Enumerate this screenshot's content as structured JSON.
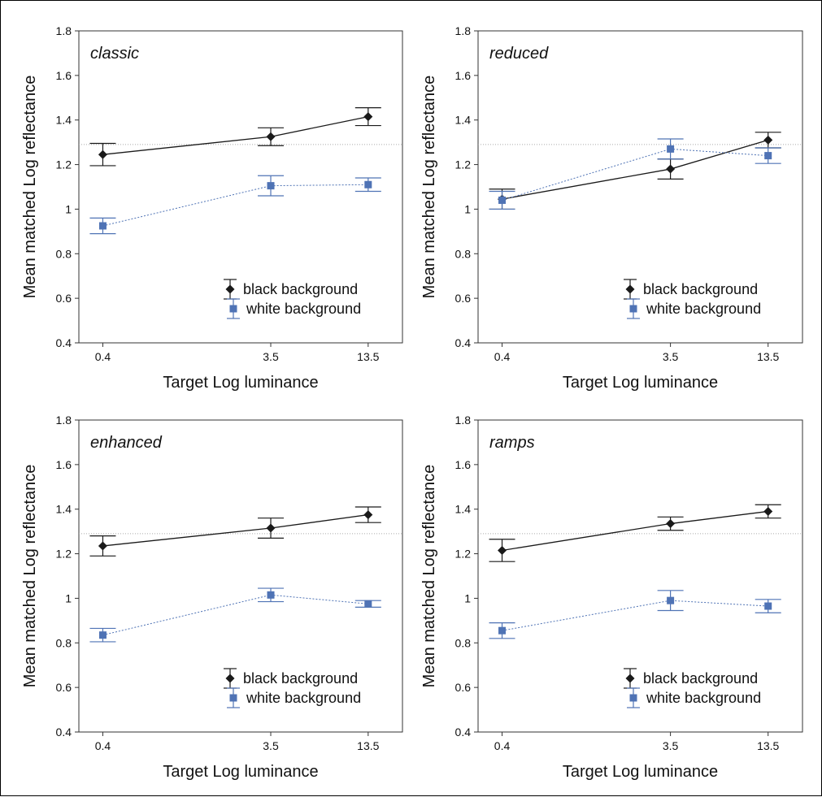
{
  "chart_data": [
    {
      "type": "line",
      "title": "classic",
      "xlabel": "Target Log luminance",
      "ylabel": "Mean matched Log reflectance",
      "x": [
        0.4,
        3.5,
        13.5
      ],
      "x_tick_labels": [
        "0.4",
        "3.5",
        "13.5"
      ],
      "ylim": [
        0.4,
        1.8
      ],
      "y_ticks": [
        "0.4",
        "0.6",
        "0.8",
        "1",
        "1.2",
        "1.4",
        "1.6",
        "1.8"
      ],
      "reference_line": 1.29,
      "legend_position": "bottom-right",
      "series": [
        {
          "name": "black background",
          "color": "#1a1a1a",
          "marker": "diamond",
          "line": "solid",
          "values": [
            1.245,
            1.325,
            1.415
          ],
          "error": [
            0.05,
            0.04,
            0.04
          ]
        },
        {
          "name": "white background",
          "color": "#4f73b5",
          "marker": "square",
          "line": "dotted",
          "values": [
            0.925,
            1.105,
            1.11
          ],
          "error": [
            0.035,
            0.045,
            0.03
          ]
        }
      ]
    },
    {
      "type": "line",
      "title": "reduced",
      "xlabel": "Target Log luminance",
      "ylabel": "Mean matched Log reflectance",
      "x": [
        0.4,
        3.5,
        13.5
      ],
      "x_tick_labels": [
        "0.4",
        "3.5",
        "13.5"
      ],
      "ylim": [
        0.4,
        1.8
      ],
      "y_ticks": [
        "0.4",
        "0.6",
        "0.8",
        "1",
        "1.2",
        "1.4",
        "1.6",
        "1.8"
      ],
      "reference_line": 1.29,
      "legend_position": "bottom-right",
      "series": [
        {
          "name": "black background",
          "color": "#1a1a1a",
          "marker": "diamond",
          "line": "solid",
          "values": [
            1.045,
            1.18,
            1.31
          ],
          "error": [
            0.045,
            0.045,
            0.035
          ]
        },
        {
          "name": "white background",
          "color": "#4f73b5",
          "marker": "square",
          "line": "dotted",
          "values": [
            1.04,
            1.27,
            1.24
          ],
          "error": [
            0.04,
            0.045,
            0.035
          ]
        }
      ]
    },
    {
      "type": "line",
      "title": "enhanced",
      "xlabel": "Target Log luminance",
      "ylabel": "Mean matched Log reflectance",
      "x": [
        0.4,
        3.5,
        13.5
      ],
      "x_tick_labels": [
        "0.4",
        "3.5",
        "13.5"
      ],
      "ylim": [
        0.4,
        1.8
      ],
      "y_ticks": [
        "0.4",
        "0.6",
        "0.8",
        "1",
        "1.2",
        "1.4",
        "1.6",
        "1.8"
      ],
      "reference_line": 1.29,
      "legend_position": "bottom-right",
      "series": [
        {
          "name": "black background",
          "color": "#1a1a1a",
          "marker": "diamond",
          "line": "solid",
          "values": [
            1.235,
            1.315,
            1.375
          ],
          "error": [
            0.045,
            0.045,
            0.035
          ]
        },
        {
          "name": "white background",
          "color": "#4f73b5",
          "marker": "square",
          "line": "dotted",
          "values": [
            0.835,
            1.015,
            0.975
          ],
          "error": [
            0.03,
            0.03,
            0.015
          ]
        }
      ]
    },
    {
      "type": "line",
      "title": "ramps",
      "xlabel": "Target Log luminance",
      "ylabel": "Mean matched Log reflectance",
      "x": [
        0.4,
        3.5,
        13.5
      ],
      "x_tick_labels": [
        "0.4",
        "3.5",
        "13.5"
      ],
      "ylim": [
        0.4,
        1.8
      ],
      "y_ticks": [
        "0.4",
        "0.6",
        "0.8",
        "1",
        "1.2",
        "1.4",
        "1.6",
        "1.8"
      ],
      "reference_line": 1.29,
      "legend_position": "bottom-right",
      "series": [
        {
          "name": "black background",
          "color": "#1a1a1a",
          "marker": "diamond",
          "line": "solid",
          "values": [
            1.215,
            1.335,
            1.39
          ],
          "error": [
            0.05,
            0.03,
            0.03
          ]
        },
        {
          "name": "white background",
          "color": "#4f73b5",
          "marker": "square",
          "line": "dotted",
          "values": [
            0.855,
            0.99,
            0.965
          ],
          "error": [
            0.035,
            0.045,
            0.03
          ]
        }
      ]
    }
  ]
}
